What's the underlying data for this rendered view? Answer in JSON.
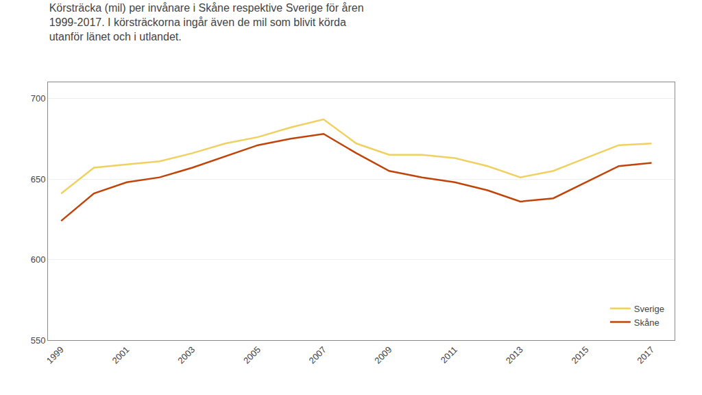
{
  "chart_data": {
    "type": "line",
    "title": "Körsträcka (mil) per invånare i Skåne respektive Sverige för åren\n1999-2017. I körsträckorna ingår även de mil som blivit körda\nutanför länet och i utlandet.",
    "x": [
      1999,
      2000,
      2001,
      2002,
      2003,
      2004,
      2005,
      2006,
      2007,
      2008,
      2009,
      2010,
      2011,
      2012,
      2013,
      2014,
      2015,
      2016,
      2017
    ],
    "series": [
      {
        "name": "Sverige",
        "color": "#f0d060",
        "values": [
          641,
          657,
          659,
          661,
          666,
          672,
          676,
          682,
          687,
          672,
          665,
          665,
          663,
          658,
          651,
          655,
          663,
          671,
          672
        ]
      },
      {
        "name": "Skåne",
        "color": "#c0440a",
        "values": [
          624,
          641,
          648,
          651,
          657,
          664,
          671,
          675,
          678,
          666,
          655,
          651,
          648,
          643,
          636,
          638,
          648,
          658,
          660
        ]
      }
    ],
    "xlim": [
      1998.6,
      2017.7
    ],
    "ylim": [
      550,
      710
    ],
    "xticks": [
      1999,
      2001,
      2003,
      2005,
      2007,
      2009,
      2011,
      2013,
      2015,
      2017
    ],
    "yticks": [
      550,
      600,
      650,
      700
    ],
    "grid": true,
    "legend": "lower right"
  }
}
